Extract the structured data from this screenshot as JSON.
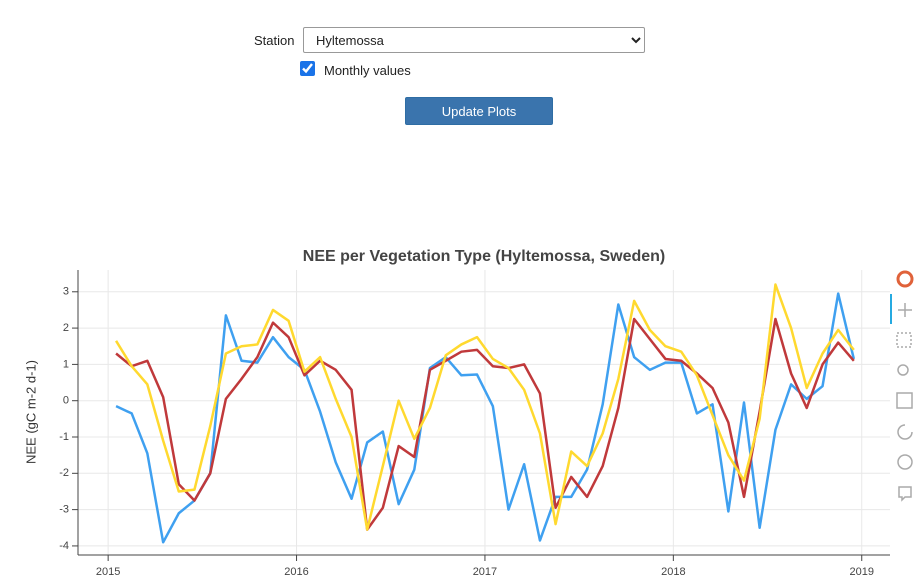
{
  "controls": {
    "station_label": "Station",
    "station_value": "Hyltemossa",
    "checkbox_label": "Monthly values",
    "checkbox_checked": true,
    "button_label": "Update Plots"
  },
  "chart_data": {
    "type": "line",
    "title": "NEE per Vegetation Type (Hyltemossa, Sweden)",
    "y_label": "NEE (gC m-2 d-1)",
    "x": [
      2015.042,
      2015.125,
      2015.208,
      2015.292,
      2015.375,
      2015.458,
      2015.542,
      2015.625,
      2015.708,
      2015.792,
      2015.875,
      2015.958,
      2016.042,
      2016.125,
      2016.208,
      2016.292,
      2016.375,
      2016.458,
      2016.542,
      2016.625,
      2016.708,
      2016.792,
      2016.875,
      2016.958,
      2017.042,
      2017.125,
      2017.208,
      2017.292,
      2017.375,
      2017.458,
      2017.542,
      2017.625,
      2017.708,
      2017.792,
      2017.875,
      2017.958,
      2018.042,
      2018.125,
      2018.208,
      2018.292,
      2018.375,
      2018.458,
      2018.542,
      2018.625,
      2018.708,
      2018.792,
      2018.875,
      2018.958
    ],
    "series": [
      {
        "color": "#3fa0f0",
        "values": [
          -0.15,
          -0.35,
          -1.45,
          -3.9,
          -3.1,
          -2.75,
          -2.0,
          2.35,
          1.1,
          1.05,
          1.75,
          1.2,
          0.85,
          -0.3,
          -1.7,
          -2.7,
          -1.15,
          -0.85,
          -2.85,
          -1.9,
          0.9,
          1.2,
          0.7,
          0.72,
          -0.15,
          -3.0,
          -1.75,
          -3.85,
          -2.65,
          -2.65,
          -1.9,
          -0.1,
          2.65,
          1.2,
          0.85,
          1.05,
          1.05,
          -0.35,
          -0.1,
          -3.05,
          -0.05,
          -3.5,
          -0.8,
          0.45,
          0.05,
          0.4,
          2.95,
          1.15
        ]
      },
      {
        "color": "#c0393b",
        "values": [
          1.3,
          0.95,
          1.1,
          0.1,
          -2.3,
          -2.75,
          -2.0,
          0.05,
          0.6,
          1.2,
          2.15,
          1.75,
          0.7,
          1.1,
          0.85,
          0.3,
          -3.55,
          -2.95,
          -1.25,
          -1.55,
          0.85,
          1.1,
          1.35,
          1.4,
          0.95,
          0.9,
          1.0,
          0.2,
          -2.95,
          -2.1,
          -2.65,
          -1.8,
          -0.2,
          2.25,
          1.7,
          1.15,
          1.1,
          0.75,
          0.35,
          -0.6,
          -2.65,
          -0.3,
          2.25,
          0.75,
          -0.2,
          1.0,
          1.6,
          1.1
        ]
      },
      {
        "color": "#ffd92f",
        "values": [
          1.65,
          0.95,
          0.45,
          -1.1,
          -2.5,
          -2.45,
          -0.7,
          1.3,
          1.5,
          1.55,
          2.5,
          2.2,
          0.8,
          1.2,
          0.05,
          -1.0,
          -3.55,
          -1.8,
          0.0,
          -1.05,
          -0.2,
          1.25,
          1.55,
          1.75,
          1.15,
          0.9,
          0.3,
          -0.9,
          -3.4,
          -1.4,
          -1.8,
          -0.9,
          0.6,
          2.75,
          1.95,
          1.5,
          1.35,
          0.7,
          -0.4,
          -1.5,
          -2.2,
          -0.5,
          3.2,
          2.0,
          0.35,
          1.3,
          1.95,
          1.4
        ]
      }
    ],
    "xlim": [
      2014.84,
      2019.15
    ],
    "xticks": [
      2015,
      2016,
      2017,
      2018,
      2019
    ],
    "ylim": [
      -4.25,
      3.6
    ],
    "yticks": [
      -4,
      -3,
      -2,
      -1,
      0,
      1,
      2,
      3
    ],
    "grid": true
  }
}
